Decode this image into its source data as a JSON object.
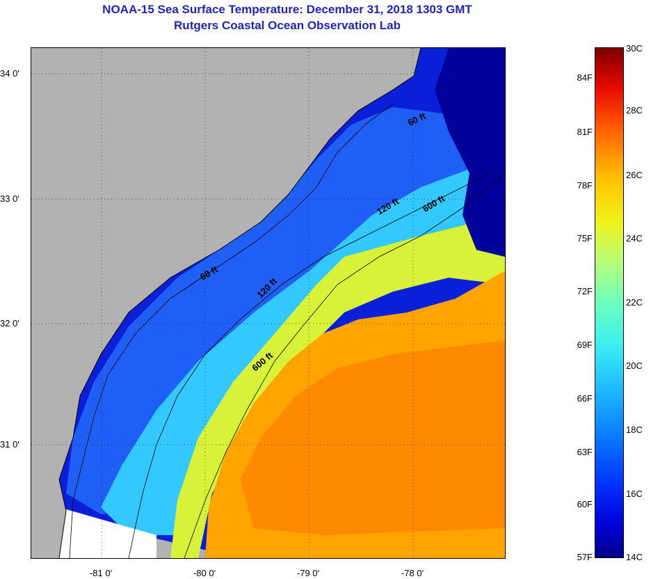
{
  "header": {
    "title": "NOAA-15 Sea Surface Temperature:  December 31, 2018 1303 GMT",
    "subtitle": "Rutgers Coastal Ocean Observation Lab"
  },
  "map": {
    "lat_labels": [
      "34 0'",
      "33 0'",
      "32 0'",
      "31 0'"
    ],
    "lon_labels": [
      "-81 0'",
      "-80 0'",
      "-79 0'",
      "-78 0'"
    ],
    "contour_labels": [
      "60 ft",
      "120 ft",
      "600 ft",
      "60 ft",
      "120 ft",
      "600 ft"
    ]
  },
  "colorbar": {
    "fahrenheit_labels": [
      "84F",
      "81F",
      "78F",
      "75F",
      "72F",
      "69F",
      "66F",
      "63F",
      "60F",
      "57F"
    ],
    "celsius_labels": [
      "30C",
      "28C",
      "26C",
      "24C",
      "22C",
      "20C",
      "18C",
      "16C",
      "14C"
    ]
  },
  "colors": {
    "land": "#b2b2b2",
    "title": "#1f25b8",
    "cold": "#0000a0",
    "warm": "#ff9a00"
  }
}
